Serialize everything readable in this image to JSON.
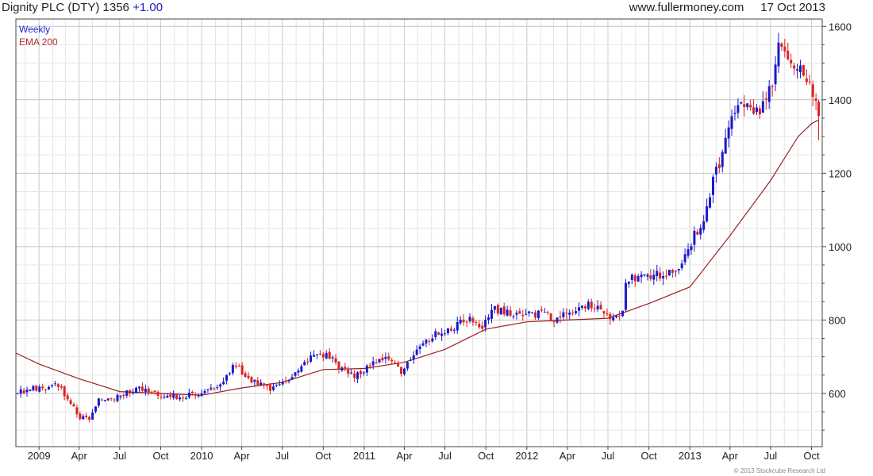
{
  "header": {
    "security": "Dignity PLC (DTY)",
    "last": "1356",
    "change": "+1.00",
    "source": "www.fullermoney.com",
    "date": "17 Oct 2013"
  },
  "legend": {
    "weekly": "Weekly",
    "ema": "EMA 200"
  },
  "copyright": "© 2013 Stockcube Research Ltd",
  "colors": {
    "up": "#1a1acc",
    "down": "#dd2222",
    "ema": "#9a2020",
    "grid": "#cfcfcf",
    "axis": "#444444"
  },
  "chart_data": {
    "type": "candlestick",
    "timeframe": "weekly",
    "y_ticks": [
      600,
      800,
      1000,
      1200,
      1400,
      1600
    ],
    "ylim": [
      455,
      1620
    ],
    "x_ticks": [
      "2009",
      "Apr",
      "Jul",
      "Oct",
      "2010",
      "Apr",
      "Jul",
      "Oct",
      "2011",
      "Apr",
      "Jul",
      "Oct",
      "2012",
      "Apr",
      "Jul",
      "Oct",
      "2013",
      "Apr",
      "Jul",
      "Oct"
    ],
    "x_range": [
      "2008-11-10",
      "2013-10-25"
    ],
    "x_tick_dates": [
      "2009-01-01",
      "2009-04-01",
      "2009-07-01",
      "2009-10-01",
      "2010-01-01",
      "2010-04-01",
      "2010-07-01",
      "2010-10-01",
      "2011-01-01",
      "2011-04-01",
      "2011-07-01",
      "2011-10-01",
      "2012-01-01",
      "2012-04-01",
      "2012-07-01",
      "2012-10-01",
      "2013-01-01",
      "2013-04-01",
      "2013-07-01",
      "2013-10-01"
    ],
    "price_path": [
      [
        "2008-11-14",
        600
      ],
      [
        "2008-12-12",
        615
      ],
      [
        "2009-01-09",
        610
      ],
      [
        "2009-02-06",
        625
      ],
      [
        "2009-03-06",
        590
      ],
      [
        "2009-03-27",
        540
      ],
      [
        "2009-04-24",
        530
      ],
      [
        "2009-05-15",
        580
      ],
      [
        "2009-06-12",
        585
      ],
      [
        "2009-07-10",
        600
      ],
      [
        "2009-08-07",
        615
      ],
      [
        "2009-09-04",
        610
      ],
      [
        "2009-10-02",
        595
      ],
      [
        "2009-11-06",
        590
      ],
      [
        "2009-12-04",
        595
      ],
      [
        "2010-01-01",
        600
      ],
      [
        "2010-02-05",
        620
      ],
      [
        "2010-03-05",
        660
      ],
      [
        "2010-03-19",
        680
      ],
      [
        "2010-04-09",
        650
      ],
      [
        "2010-05-07",
        625
      ],
      [
        "2010-06-04",
        615
      ],
      [
        "2010-07-02",
        625
      ],
      [
        "2010-07-30",
        655
      ],
      [
        "2010-08-27",
        690
      ],
      [
        "2010-09-24",
        705
      ],
      [
        "2010-10-22",
        695
      ],
      [
        "2010-11-12",
        665
      ],
      [
        "2010-12-10",
        650
      ],
      [
        "2011-01-07",
        670
      ],
      [
        "2011-02-04",
        700
      ],
      [
        "2011-03-04",
        690
      ],
      [
        "2011-03-25",
        660
      ],
      [
        "2011-04-15",
        700
      ],
      [
        "2011-05-13",
        740
      ],
      [
        "2011-06-10",
        760
      ],
      [
        "2011-07-08",
        770
      ],
      [
        "2011-08-05",
        795
      ],
      [
        "2011-09-02",
        800
      ],
      [
        "2011-09-23",
        770
      ],
      [
        "2011-10-14",
        830
      ],
      [
        "2011-11-11",
        825
      ],
      [
        "2011-12-09",
        815
      ],
      [
        "2012-01-06",
        820
      ],
      [
        "2012-02-03",
        815
      ],
      [
        "2012-03-02",
        805
      ],
      [
        "2012-03-30",
        820
      ],
      [
        "2012-04-27",
        835
      ],
      [
        "2012-05-25",
        840
      ],
      [
        "2012-06-22",
        825
      ],
      [
        "2012-07-13",
        800
      ],
      [
        "2012-08-03",
        825
      ],
      [
        "2012-08-10",
        910
      ],
      [
        "2012-09-07",
        915
      ],
      [
        "2012-10-05",
        920
      ],
      [
        "2012-11-02",
        925
      ],
      [
        "2012-11-30",
        935
      ],
      [
        "2012-12-21",
        975
      ],
      [
        "2013-01-11",
        1030
      ],
      [
        "2013-02-01",
        1080
      ],
      [
        "2013-02-15",
        1150
      ],
      [
        "2013-03-08",
        1230
      ],
      [
        "2013-03-29",
        1330
      ],
      [
        "2013-04-19",
        1400
      ],
      [
        "2013-05-10",
        1390
      ],
      [
        "2013-05-24",
        1360
      ],
      [
        "2013-06-14",
        1380
      ],
      [
        "2013-07-05",
        1450
      ],
      [
        "2013-07-19",
        1555
      ],
      [
        "2013-08-09",
        1530
      ],
      [
        "2013-08-30",
        1490
      ],
      [
        "2013-09-20",
        1460
      ],
      [
        "2013-10-04",
        1410
      ],
      [
        "2013-10-17",
        1356
      ]
    ],
    "ema200_path": [
      [
        "2008-11-10",
        710
      ],
      [
        "2009-01-01",
        680
      ],
      [
        "2009-04-01",
        640
      ],
      [
        "2009-07-01",
        605
      ],
      [
        "2009-10-01",
        600
      ],
      [
        "2010-01-01",
        595
      ],
      [
        "2010-04-01",
        615
      ],
      [
        "2010-07-01",
        630
      ],
      [
        "2010-10-01",
        665
      ],
      [
        "2011-01-01",
        668
      ],
      [
        "2011-04-01",
        685
      ],
      [
        "2011-07-01",
        720
      ],
      [
        "2011-10-01",
        775
      ],
      [
        "2012-01-01",
        795
      ],
      [
        "2012-04-01",
        800
      ],
      [
        "2012-07-01",
        805
      ],
      [
        "2012-10-01",
        845
      ],
      [
        "2013-01-01",
        890
      ],
      [
        "2013-04-01",
        1030
      ],
      [
        "2013-07-01",
        1180
      ],
      [
        "2013-08-01",
        1240
      ],
      [
        "2013-09-01",
        1300
      ],
      [
        "2013-10-01",
        1335
      ],
      [
        "2013-10-17",
        1345
      ]
    ],
    "last_candle": {
      "date": "2013-10-17",
      "open": 1395,
      "high": 1400,
      "low": 1290,
      "close": 1356
    }
  }
}
